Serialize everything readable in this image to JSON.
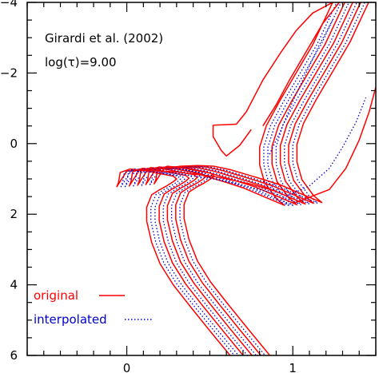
{
  "chart_data": {
    "type": "line",
    "annotations": [
      "Girardi et al. (2002)",
      "log(τ)=9.00"
    ],
    "xlabel": "",
    "ylabel": "",
    "xlim": [
      -0.6,
      1.5
    ],
    "ylim": [
      6,
      -4
    ],
    "x_ticks": [
      0,
      1
    ],
    "x_tick_labels": [
      "0",
      "1"
    ],
    "y_ticks": [
      -4,
      -2,
      0,
      2,
      4,
      6
    ],
    "y_tick_labels": [
      "−4",
      "−2",
      "0",
      "2",
      "4",
      "6"
    ],
    "y_inverted": true,
    "grid": false,
    "legend": {
      "placement": "bottom-left",
      "entries": [
        {
          "label": "original",
          "color": "#ff0000",
          "style": "solid"
        },
        {
          "label": "interpolated",
          "color": "#0000cc",
          "style": "dotted"
        }
      ]
    },
    "colors": {
      "original": "#ff0000",
      "interpolated": "#0000cc"
    },
    "base_track": [
      [
        0.64,
        6.1
      ],
      [
        0.5,
        5.3
      ],
      [
        0.38,
        4.6
      ],
      [
        0.28,
        4.0
      ],
      [
        0.2,
        3.4
      ],
      [
        0.15,
        2.8
      ],
      [
        0.12,
        2.2
      ],
      [
        0.12,
        1.8
      ],
      [
        0.15,
        1.45
      ],
      [
        0.2,
        1.3
      ],
      [
        0.24,
        1.2
      ],
      [
        0.28,
        1.08
      ],
      [
        0.3,
        1.0
      ],
      [
        0.28,
        0.92
      ],
      [
        0.2,
        0.85
      ],
      [
        0.1,
        0.76
      ],
      [
        0.02,
        0.72
      ],
      [
        -0.04,
        0.82
      ],
      [
        -0.05,
        1.1
      ],
      [
        -0.06,
        1.22
      ],
      [
        0.0,
        0.78
      ],
      [
        0.1,
        0.72
      ],
      [
        0.2,
        0.7
      ],
      [
        0.3,
        0.72
      ],
      [
        0.4,
        0.82
      ],
      [
        0.5,
        0.96
      ],
      [
        0.6,
        1.1
      ],
      [
        0.7,
        1.25
      ],
      [
        0.8,
        1.45
      ],
      [
        0.9,
        1.65
      ],
      [
        0.95,
        1.75
      ],
      [
        0.9,
        1.55
      ],
      [
        0.83,
        1.1
      ],
      [
        0.8,
        0.6
      ],
      [
        0.8,
        0.1
      ],
      [
        0.84,
        -0.5
      ],
      [
        0.92,
        -1.2
      ],
      [
        1.02,
        -2.0
      ],
      [
        1.12,
        -2.8
      ],
      [
        1.2,
        -3.6
      ],
      [
        1.26,
        -4.2
      ]
    ],
    "series": [
      {
        "group": "original",
        "dx": 0.0,
        "dy": 0.0
      },
      {
        "group": "interpolated",
        "dx": 0.025,
        "dy": 0.0
      },
      {
        "group": "interpolated",
        "dx": 0.05,
        "dy": 0.0
      },
      {
        "group": "original",
        "dx": 0.075,
        "dy": -0.02
      },
      {
        "group": "interpolated",
        "dx": 0.1,
        "dy": -0.02
      },
      {
        "group": "original",
        "dx": 0.125,
        "dy": -0.04
      },
      {
        "group": "interpolated",
        "dx": 0.15,
        "dy": -0.04
      },
      {
        "group": "original",
        "dx": 0.175,
        "dy": -0.06
      },
      {
        "group": "interpolated",
        "dx": 0.2,
        "dy": -0.06
      },
      {
        "group": "original",
        "dx": 0.225,
        "dy": -0.08
      }
    ],
    "extra_lines": [
      {
        "group": "original",
        "points": [
          [
            0.52,
            -0.52
          ],
          [
            0.66,
            -0.55
          ],
          [
            0.72,
            -0.9
          ],
          [
            0.82,
            -1.8
          ],
          [
            0.93,
            -2.6
          ],
          [
            1.02,
            -3.2
          ],
          [
            1.12,
            -3.7
          ],
          [
            1.28,
            -4.1
          ]
        ]
      },
      {
        "group": "original",
        "points": [
          [
            0.52,
            -0.52
          ],
          [
            0.52,
            -0.2
          ],
          [
            0.57,
            0.2
          ],
          [
            0.6,
            0.35
          ],
          [
            0.68,
            0.05
          ],
          [
            0.75,
            -0.4
          ]
        ]
      },
      {
        "group": "original",
        "points": [
          [
            0.82,
            -0.5
          ],
          [
            0.9,
            -1.1
          ],
          [
            0.98,
            -1.8
          ],
          [
            1.08,
            -2.6
          ],
          [
            1.18,
            -3.4
          ],
          [
            1.28,
            -4.0
          ]
        ]
      },
      {
        "group": "original",
        "points": [
          [
            1.0,
            1.7
          ],
          [
            1.22,
            1.3
          ],
          [
            1.32,
            0.7
          ],
          [
            1.4,
            -0.1
          ],
          [
            1.46,
            -0.9
          ],
          [
            1.5,
            -1.6
          ]
        ]
      },
      {
        "group": "interpolated",
        "points": [
          [
            0.86,
            0.3
          ],
          [
            0.93,
            -0.4
          ],
          [
            1.0,
            -1.2
          ],
          [
            1.08,
            -2.0
          ],
          [
            1.16,
            -2.8
          ],
          [
            1.24,
            -3.5
          ]
        ]
      },
      {
        "group": "interpolated",
        "points": [
          [
            0.96,
            1.5
          ],
          [
            1.1,
            1.2
          ],
          [
            1.22,
            0.7
          ],
          [
            1.3,
            0.1
          ],
          [
            1.38,
            -0.6
          ],
          [
            1.44,
            -1.3
          ]
        ]
      },
      {
        "group": "original",
        "points": [
          [
            0.04,
            0.74
          ],
          [
            0.3,
            0.8
          ],
          [
            0.55,
            0.95
          ],
          [
            0.75,
            1.15
          ],
          [
            0.9,
            1.35
          ]
        ]
      },
      {
        "group": "interpolated",
        "points": [
          [
            0.06,
            0.78
          ],
          [
            0.28,
            0.84
          ],
          [
            0.5,
            0.98
          ],
          [
            0.7,
            1.18
          ],
          [
            0.86,
            1.38
          ]
        ]
      }
    ]
  }
}
